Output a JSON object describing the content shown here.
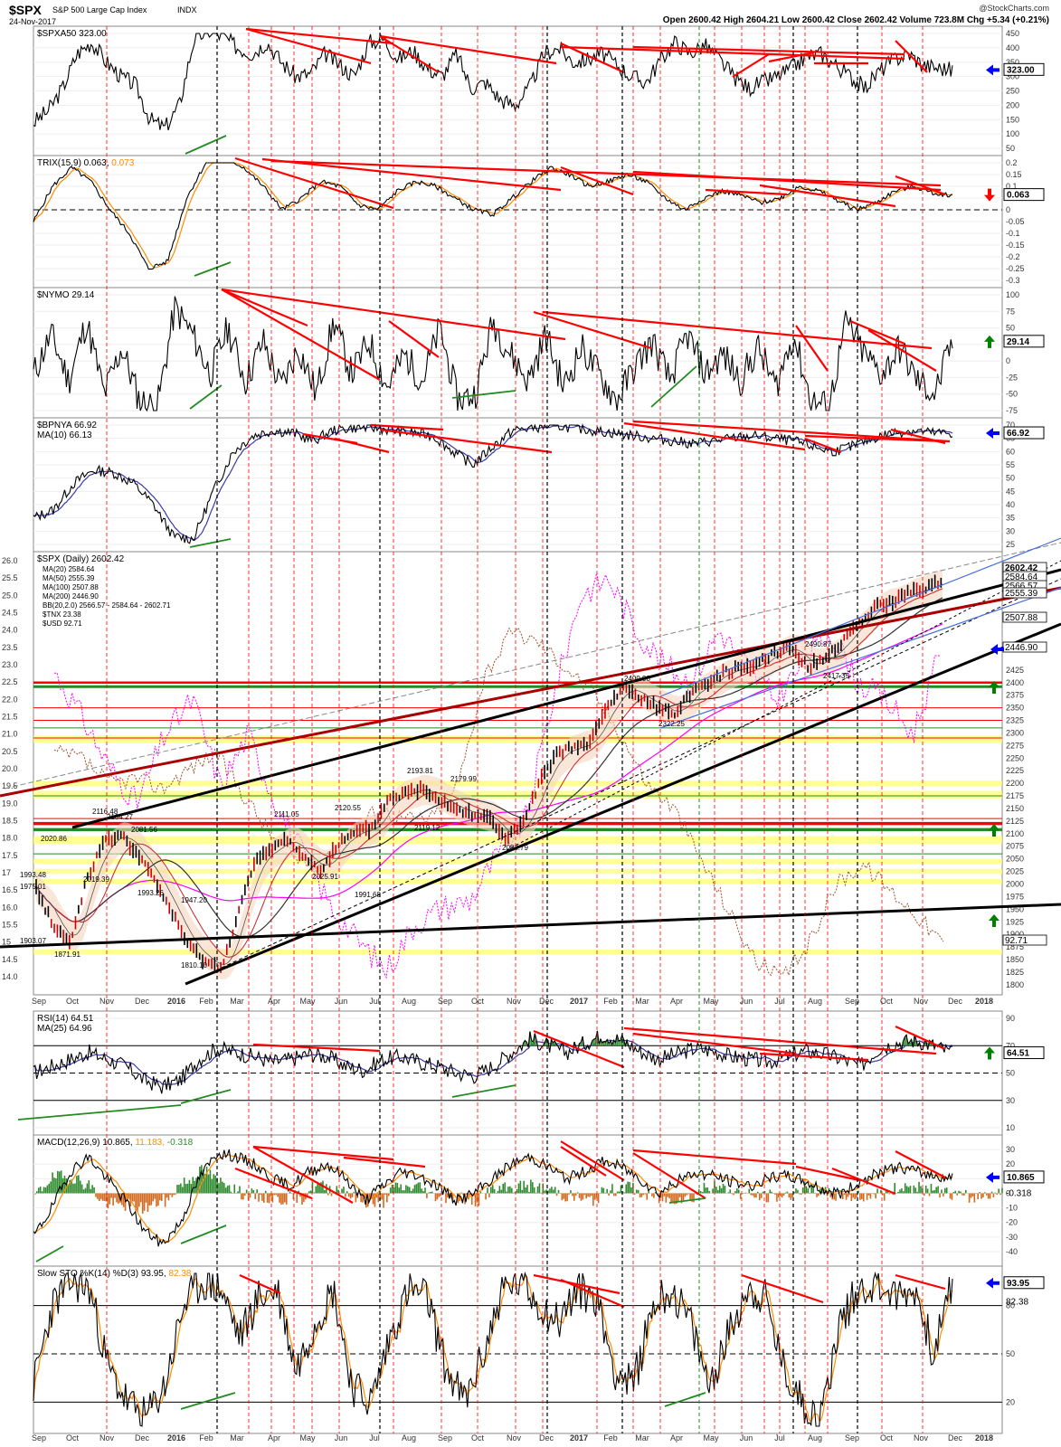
{
  "header": {
    "symbol": "$SPX",
    "name": "S&P 500 Large Cap Index",
    "exchange": "INDX",
    "date": "24-Nov-2017",
    "copyright": "@StockCharts.com",
    "ohlc": "Open 2600.42  High 2604.21  Low 2600.42  Close 2602.42  Volume 723.8M  Chg +5.34 (+0.21%)"
  },
  "colors": {
    "price": "#000000",
    "red_trend": "#ff0000",
    "green_trend": "#228b22",
    "ma_blue": "#3a3aa8",
    "ma_orange": "#ff8c00",
    "dark_red": "#8b0000",
    "magenta": "#ff00ff",
    "brown": "#a0522d",
    "yellow_zone": "#ffff66",
    "histogram_green": "#2e8b2e",
    "histogram_orange": "#d2691e",
    "arrow_blue": "#0000ff",
    "arrow_green": "#008000",
    "arrow_red": "#ff0000"
  },
  "chart_data": [
    {
      "type": "line",
      "panel": "spxa50",
      "title": "$SPXA50 323.00",
      "last_value": "323.00",
      "arrow": "blue",
      "ylim": [
        50,
        450
      ],
      "y_ticks": [
        50,
        100,
        150,
        200,
        250,
        300,
        350,
        400,
        450
      ],
      "series": [
        {
          "values": [
            140,
            180,
            260,
            380,
            420,
            350,
            300,
            270,
            150,
            120,
            200,
            430,
            460,
            440,
            400,
            380,
            420,
            350,
            300,
            310,
            380,
            340,
            300,
            420,
            430,
            360,
            390,
            330,
            300,
            380,
            260,
            280,
            220,
            200,
            260,
            380,
            400,
            350,
            360,
            380,
            340,
            300,
            280,
            360,
            420,
            380,
            410,
            360,
            300,
            260,
            280,
            300,
            330,
            370,
            380,
            340,
            300,
            260,
            320,
            360,
            380,
            340,
            330,
            323
          ]
        }
      ]
    },
    {
      "type": "line",
      "panel": "trix",
      "title": "TRIX(15,9) 0.063, 0.073",
      "label_parts": {
        "main": "TRIX(15,9) 0.063,",
        "signal": "0.073"
      },
      "last_value": "0.063",
      "arrow": "red",
      "ylim": [
        -0.3,
        0.2
      ],
      "y_ticks": [
        -0.3,
        -0.25,
        -0.2,
        -0.15,
        -0.1,
        -0.05,
        0.0,
        0.05,
        0.1,
        0.15,
        0.2
      ],
      "series": [
        {
          "values": [
            -0.05,
            0.1,
            0.18,
            0.12,
            0.0,
            -0.1,
            -0.25,
            -0.22,
            0.05,
            0.2,
            0.22,
            0.18,
            0.1,
            0.0,
            0.05,
            0.12,
            0.1,
            0.02,
            0.0,
            0.08,
            0.12,
            0.1,
            0.05,
            0.0,
            -0.02,
            0.05,
            0.12,
            0.18,
            0.15,
            0.1,
            0.12,
            0.15,
            0.12,
            0.05,
            0.0,
            0.05,
            0.08,
            0.06,
            0.03,
            0.05,
            0.1,
            0.08,
            0.04,
            0.0,
            0.03,
            0.08,
            0.1,
            0.07,
            0.063
          ]
        }
      ]
    },
    {
      "type": "line",
      "panel": "nymo",
      "title": "$NYMO 29.14",
      "last_value": "29.14",
      "arrow": "green",
      "ylim": [
        -75,
        100
      ],
      "y_ticks": [
        -75,
        -50,
        -25,
        0,
        25,
        50,
        75,
        100
      ],
      "series": [
        {
          "values": [
            -20,
            40,
            -30,
            60,
            -50,
            20,
            -60,
            -70,
            80,
            40,
            -20,
            50,
            -30,
            30,
            -40,
            20,
            -50,
            60,
            -20,
            30,
            -40,
            10,
            -30,
            50,
            -60,
            -50,
            60,
            10,
            -30,
            40,
            -40,
            20,
            -20,
            -60,
            -10,
            30,
            -30,
            40,
            -20,
            10,
            -30,
            20,
            -40,
            40,
            -60,
            -70,
            60,
            10,
            -20,
            20,
            -30,
            -50,
            29.14
          ]
        }
      ]
    },
    {
      "type": "line",
      "panel": "bpnya",
      "title": "$BPNYA 66.92",
      "ma_label": "MA(10) 66.13",
      "last_value": "66.92",
      "arrow": "blue",
      "ylim": [
        25,
        70
      ],
      "y_ticks": [
        25,
        30,
        35,
        40,
        45,
        50,
        55,
        60,
        65,
        70
      ],
      "series": [
        {
          "values": [
            35,
            38,
            48,
            53,
            52,
            48,
            40,
            28,
            27,
            45,
            60,
            66,
            68,
            67,
            64,
            68,
            69,
            69,
            68,
            67,
            66,
            60,
            55,
            62,
            68,
            69,
            70,
            69,
            68,
            67,
            66,
            65,
            64,
            63,
            64,
            65,
            66,
            65,
            64,
            62,
            60,
            62,
            65,
            67,
            68,
            67,
            66.92
          ]
        }
      ]
    },
    {
      "type": "line",
      "panel": "price",
      "title": "$SPX (Daily) 2602.42",
      "legend": [
        "MA(20) 2584.64",
        "MA(50) 2555.39",
        "MA(100) 2507.88",
        "MA(200) 2446.90",
        "BB(20,2.0) 2566.57 - 2584.64 - 2602.71",
        "$TNX 23.38",
        "$USD 92.71"
      ],
      "right_ticks": [
        1800,
        1825,
        1850,
        1875,
        1900,
        1925,
        1950,
        1975,
        2000,
        2025,
        2050,
        2075,
        2100,
        2125,
        2150,
        2175,
        2200,
        2225,
        2250,
        2275,
        2300,
        2325,
        2350,
        2375,
        2400,
        2425,
        2450,
        2475,
        2500,
        2525,
        2550,
        2575,
        2600,
        2625
      ],
      "right_tick_labels": [
        "1800",
        "1825",
        "1850",
        "1875",
        "1900",
        "1925",
        "1950",
        "1975",
        "2000",
        "2025",
        "2050",
        "2075",
        "2100",
        "2125",
        "2150",
        "2175",
        "2200",
        "2225",
        "2250",
        "2275",
        "2300",
        "2325",
        "2350",
        "2375",
        "2400",
        "2425",
        "",
        "2475",
        "",
        "",
        "",
        "",
        "",
        "2625"
      ],
      "left_ticks": [
        14.0,
        14.5,
        15.0,
        15.5,
        16.0,
        16.5,
        17.0,
        17.5,
        18.0,
        18.5,
        19.0,
        19.5,
        20.0,
        20.5,
        21.0,
        21.5,
        22.0,
        22.5,
        23.0,
        23.5,
        24.0,
        24.5,
        25.0,
        25.5,
        26.0
      ],
      "left_tick_labels": [
        "14.0",
        "14.5",
        "15",
        "15.5",
        "16.0",
        "16.5",
        "17",
        "17.5",
        "18.0",
        "18.5",
        "19.0",
        "19.5",
        "20.0",
        "20.5",
        "21.0",
        "21.5",
        "22.0",
        "22.5",
        "23.0",
        "23.5",
        "24.0",
        "24.5",
        "25.0",
        "25.5",
        "26.0"
      ],
      "ylim": [
        1780,
        2660
      ],
      "right_labels": [
        "2602.42",
        "2584.64",
        "2566.57",
        "2555.39",
        "2507.88",
        "2446.90",
        "92.71"
      ],
      "annotations": [
        "1993.48",
        "1975.01",
        "1903.07",
        "1871.91",
        "2020.86",
        "2116.48",
        "2104.27",
        "2081.56",
        "2019.39",
        "1993.26",
        "1947.20",
        "1810.10",
        "2111.05",
        "2120.55",
        "2025.91",
        "1991.68",
        "2193.81",
        "2179.99",
        "2119.12",
        "2083.79",
        "2400.98",
        "2322.25",
        "2490.87",
        "2417.35"
      ],
      "series": [
        {
          "name": "$SPX",
          "values": [
            1990,
            1920,
            1880,
            2010,
            2080,
            2100,
            2060,
            2010,
            1950,
            1880,
            1850,
            1830,
            1940,
            2040,
            2070,
            2090,
            2050,
            2030,
            2080,
            2100,
            2110,
            2170,
            2180,
            2190,
            2170,
            2150,
            2140,
            2130,
            2090,
            2120,
            2200,
            2260,
            2270,
            2280,
            2350,
            2390,
            2370,
            2350,
            2340,
            2380,
            2400,
            2420,
            2430,
            2440,
            2460,
            2470,
            2430,
            2450,
            2480,
            2520,
            2550,
            2560,
            2580,
            2590,
            2602.42
          ]
        }
      ]
    },
    {
      "type": "line",
      "panel": "rsi",
      "title": "RSI(14) 64.51",
      "ma_label": "MA(25) 64.96",
      "last_value": "64.51",
      "arrow": "green",
      "ylim": [
        10,
        90
      ],
      "y_ticks": [
        10,
        30,
        50,
        70,
        90
      ],
      "y_tick_labels": [
        "10",
        "30",
        "50",
        "70",
        "90"
      ],
      "series": [
        {
          "values": [
            50,
            55,
            60,
            65,
            60,
            55,
            45,
            40,
            45,
            60,
            68,
            65,
            62,
            58,
            60,
            64,
            62,
            55,
            52,
            60,
            62,
            58,
            55,
            50,
            48,
            55,
            65,
            75,
            70,
            65,
            72,
            78,
            74,
            66,
            60,
            64,
            68,
            66,
            62,
            60,
            58,
            62,
            66,
            64,
            60,
            55,
            68,
            72,
            74,
            70,
            64.51
          ]
        }
      ]
    },
    {
      "type": "line",
      "panel": "macd",
      "title": "MACD(12,26,9) 10.865, 11.183, -0.318",
      "label_parts": {
        "main": "MACD(12,26,9) 10.865,",
        "signal": "11.183,",
        "hist": "-0.318"
      },
      "last_value": "10.865",
      "last_hist": "-0.318",
      "arrow": "blue",
      "ylim": [
        -45,
        35
      ],
      "y_ticks": [
        -40,
        -30,
        -20,
        -10,
        0,
        10,
        20,
        30
      ],
      "y_tick_labels": [
        "-40",
        "-30",
        "-20",
        "-10",
        "0",
        "10",
        "20",
        "30"
      ],
      "series": [
        {
          "values": [
            -30,
            -10,
            15,
            25,
            10,
            -5,
            -25,
            -35,
            -20,
            10,
            28,
            25,
            20,
            10,
            5,
            15,
            20,
            10,
            -5,
            5,
            15,
            12,
            5,
            -5,
            0,
            10,
            20,
            25,
            18,
            10,
            15,
            22,
            18,
            10,
            0,
            8,
            14,
            12,
            8,
            5,
            10,
            12,
            8,
            2,
            0,
            8,
            14,
            18,
            15,
            12,
            10.865
          ]
        }
      ]
    },
    {
      "type": "line",
      "panel": "sto",
      "title": "Slow STO %K(14) %D(3) 93.95, 82.38",
      "label_parts": {
        "main": "Slow STO %K(14) %D(3) 93.95,",
        "signal": "82.38"
      },
      "last_value": "93.95",
      "last_signal": "82.38",
      "arrow": "blue",
      "ylim": [
        5,
        100
      ],
      "y_ticks": [
        20,
        50,
        80
      ],
      "y_tick_labels": [
        "20",
        "50",
        "80"
      ],
      "series": [
        {
          "values": [
            30,
            80,
            95,
            90,
            40,
            20,
            10,
            30,
            80,
            95,
            90,
            60,
            85,
            90,
            40,
            70,
            90,
            30,
            20,
            60,
            90,
            85,
            40,
            20,
            50,
            90,
            95,
            80,
            70,
            90,
            85,
            40,
            30,
            80,
            90,
            70,
            30,
            60,
            90,
            85,
            40,
            20,
            10,
            70,
            90,
            95,
            85,
            90,
            50,
            93.95
          ]
        }
      ]
    }
  ],
  "x_axis": {
    "labels": [
      "Sep",
      "Oct",
      "Nov",
      "Dec",
      "2016",
      "Feb",
      "Mar",
      "Apr",
      "May",
      "Jun",
      "Jul",
      "Aug",
      "Sep",
      "Oct",
      "Nov",
      "Dec",
      "2017",
      "Feb",
      "Mar",
      "Apr",
      "May",
      "Jun",
      "Jul",
      "Aug",
      "Sep",
      "Oct",
      "Nov",
      "Dec",
      "2018"
    ]
  }
}
